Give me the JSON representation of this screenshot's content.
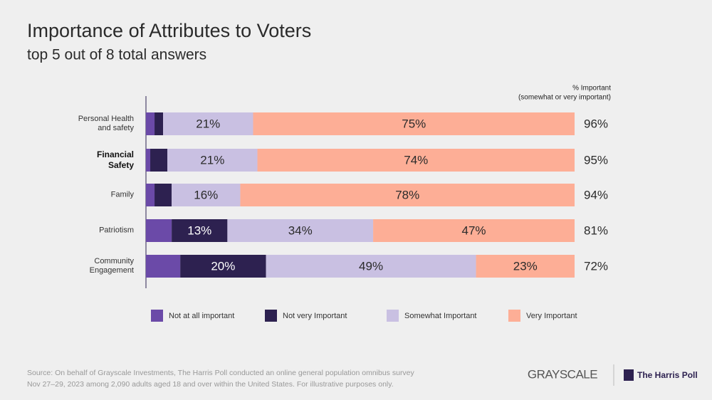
{
  "chart_data": {
    "type": "stacked-bar-horizontal",
    "title": "Importance of Attributes to Voters",
    "subtitle": "top 5 out of 8 total answers",
    "categories": [
      "Personal Health\nand safety",
      "Financial\nSafety",
      "Family",
      "Patriotism",
      "Community\nEngagement"
    ],
    "bold_categories": [
      1
    ],
    "xlim": [
      0,
      100
    ],
    "series": [
      {
        "name": "Not at all important",
        "color": "#6b4aa8",
        "values": [
          2,
          1,
          2,
          6,
          8
        ],
        "value_labels": [
          null,
          null,
          null,
          null,
          null
        ]
      },
      {
        "name": "Not very Important",
        "color": "#2d2150",
        "values": [
          2,
          4,
          4,
          13,
          20
        ],
        "value_labels": [
          null,
          null,
          null,
          "13%",
          "20%"
        ]
      },
      {
        "name": "Somewhat Important",
        "color": "#c9c0e2",
        "values": [
          21,
          21,
          16,
          34,
          49
        ],
        "value_labels": [
          "21%",
          "21%",
          "16%",
          "34%",
          "49%"
        ]
      },
      {
        "name": "Very Important",
        "color": "#fdae96",
        "values": [
          75,
          74,
          78,
          47,
          23
        ],
        "value_labels": [
          "75%",
          "74%",
          "78%",
          "47%",
          "23%"
        ]
      }
    ],
    "totals_title": "% Important",
    "totals_subtitle": "(somewhat or very important)",
    "totals": {
      "values": [
        96,
        95,
        94,
        81,
        72
      ],
      "value_labels": [
        "96%",
        "95%",
        "94%",
        "81%",
        "72%"
      ]
    },
    "source": "Source: On behalf of Grayscale Investments, The Harris Poll conducted an online general population omnibus survey\nNov 27–29, 2023 among 2,090 adults aged 18 and over within the United States. For illustrative purposes only.",
    "brand_left": "GRAYSCALE",
    "brand_right": "The Harris Poll"
  }
}
